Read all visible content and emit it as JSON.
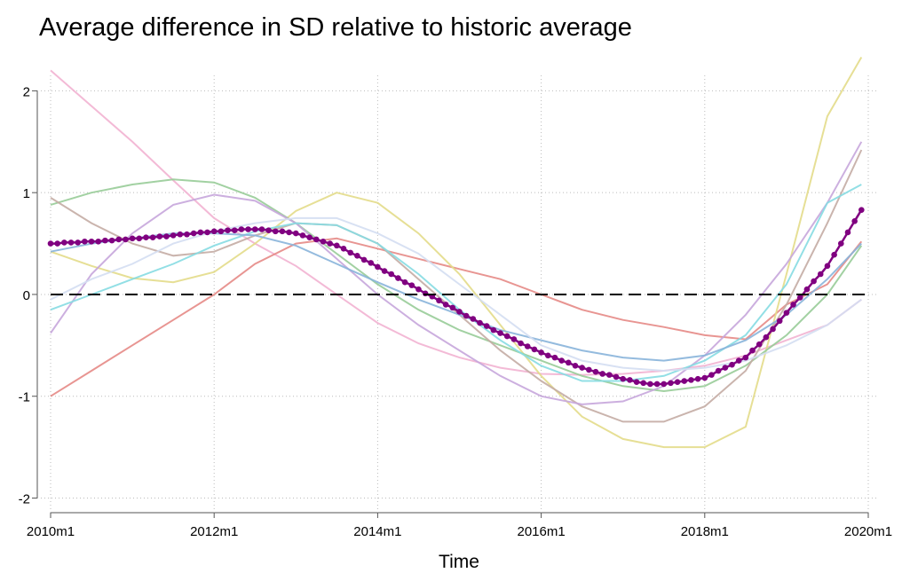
{
  "chart_data": {
    "type": "line",
    "title": "Average difference in SD relative to historic average",
    "x_label": "Time",
    "xlim": [
      0,
      120
    ],
    "ylim": [
      -2.1,
      2.5
    ],
    "xticks": [
      {
        "value": 0,
        "label": "2010m1"
      },
      {
        "value": 24,
        "label": "2012m1"
      },
      {
        "value": 48,
        "label": "2014m1"
      },
      {
        "value": 72,
        "label": "2016m1"
      },
      {
        "value": 96,
        "label": "2018m1"
      },
      {
        "value": 120,
        "label": "2020m1"
      }
    ],
    "yticks": [
      -2,
      -1,
      0,
      1,
      2
    ],
    "grid": true,
    "hline": 0,
    "x": [
      0,
      6,
      12,
      18,
      24,
      30,
      36,
      42,
      48,
      54,
      60,
      66,
      72,
      78,
      84,
      90,
      96,
      102,
      108,
      114,
      119
    ],
    "series": [
      {
        "color": "#f2b3d1",
        "values": [
          2.2,
          1.85,
          1.5,
          1.12,
          0.75,
          0.5,
          0.28,
          0.0,
          -0.28,
          -0.48,
          -0.62,
          -0.72,
          -0.78,
          -0.79,
          -0.78,
          -0.75,
          -0.7,
          -0.6,
          -0.45,
          -0.3,
          -0.05
        ]
      },
      {
        "color": "#e58a86",
        "values": [
          -1,
          -0.75,
          -0.5,
          -0.25,
          0.0,
          0.3,
          0.5,
          0.55,
          0.45,
          0.35,
          0.25,
          0.15,
          0.0,
          -0.15,
          -0.25,
          -0.32,
          -0.4,
          -0.44,
          -0.1,
          0.1,
          0.52
        ]
      },
      {
        "color": "#e3db8a",
        "values": [
          0.42,
          0.28,
          0.16,
          0.12,
          0.22,
          0.5,
          0.82,
          1.0,
          0.9,
          0.6,
          0.2,
          -0.3,
          -0.8,
          -1.2,
          -1.42,
          -1.5,
          -1.5,
          -1.3,
          0.2,
          1.75,
          2.33
        ]
      },
      {
        "color": "#98cc98",
        "values": [
          0.88,
          1.0,
          1.08,
          1.13,
          1.1,
          0.95,
          0.7,
          0.4,
          0.1,
          -0.15,
          -0.35,
          -0.5,
          -0.65,
          -0.8,
          -0.9,
          -0.95,
          -0.9,
          -0.7,
          -0.4,
          0.0,
          0.48
        ]
      },
      {
        "color": "#c4aca4",
        "values": [
          0.95,
          0.7,
          0.5,
          0.38,
          0.42,
          0.58,
          0.7,
          0.68,
          0.5,
          0.15,
          -0.2,
          -0.55,
          -0.85,
          -1.1,
          -1.25,
          -1.25,
          -1.1,
          -0.75,
          -0.1,
          0.7,
          1.42
        ]
      },
      {
        "color": "#c6a6dc",
        "values": [
          -0.38,
          0.2,
          0.6,
          0.88,
          0.98,
          0.92,
          0.7,
          0.35,
          0.0,
          -0.3,
          -0.55,
          -0.8,
          -1.0,
          -1.08,
          -1.05,
          -0.9,
          -0.6,
          -0.2,
          0.3,
          0.9,
          1.5
        ]
      },
      {
        "color": "#86dbe2",
        "values": [
          -0.15,
          0.0,
          0.15,
          0.3,
          0.48,
          0.62,
          0.7,
          0.68,
          0.5,
          0.2,
          -0.15,
          -0.45,
          -0.7,
          -0.85,
          -0.85,
          -0.8,
          -0.65,
          -0.4,
          0.1,
          0.9,
          1.08
        ]
      },
      {
        "color": "#88b4da",
        "values": [
          0.42,
          0.5,
          0.55,
          0.6,
          0.6,
          0.58,
          0.48,
          0.3,
          0.12,
          -0.05,
          -0.2,
          -0.35,
          -0.45,
          -0.55,
          -0.62,
          -0.65,
          -0.6,
          -0.45,
          -0.2,
          0.15,
          0.5
        ]
      },
      {
        "color": "#d4def2",
        "values": [
          -0.05,
          0.15,
          0.3,
          0.5,
          0.62,
          0.7,
          0.75,
          0.75,
          0.6,
          0.4,
          0.1,
          -0.2,
          -0.5,
          -0.65,
          -0.72,
          -0.75,
          -0.72,
          -0.65,
          -0.5,
          -0.3,
          -0.05
        ]
      },
      {
        "color": "#800080",
        "marker": true,
        "x": [
          0,
          1,
          2,
          3,
          4,
          5,
          6,
          7,
          8,
          9,
          10,
          11,
          12,
          13,
          14,
          15,
          16,
          17,
          18,
          19,
          20,
          21,
          22,
          23,
          24,
          25,
          26,
          27,
          28,
          29,
          30,
          31,
          32,
          33,
          34,
          35,
          36,
          37,
          38,
          39,
          40,
          41,
          42,
          43,
          44,
          45,
          46,
          47,
          48,
          49,
          50,
          51,
          52,
          53,
          54,
          55,
          56,
          57,
          58,
          59,
          60,
          61,
          62,
          63,
          64,
          65,
          66,
          67,
          68,
          69,
          70,
          71,
          72,
          73,
          74,
          75,
          76,
          77,
          78,
          79,
          80,
          81,
          82,
          83,
          84,
          85,
          86,
          87,
          88,
          89,
          90,
          91,
          92,
          93,
          94,
          95,
          96,
          97,
          98,
          99,
          100,
          101,
          102,
          103,
          104,
          105,
          106,
          107,
          108,
          109,
          110,
          111,
          112,
          113,
          114,
          115,
          116,
          117,
          118,
          119
        ],
        "values": [
          0.5,
          0.5,
          0.51,
          0.51,
          0.51,
          0.52,
          0.52,
          0.52,
          0.53,
          0.53,
          0.54,
          0.54,
          0.55,
          0.55,
          0.56,
          0.56,
          0.57,
          0.57,
          0.58,
          0.59,
          0.59,
          0.6,
          0.61,
          0.61,
          0.62,
          0.62,
          0.63,
          0.63,
          0.64,
          0.64,
          0.64,
          0.64,
          0.63,
          0.62,
          0.62,
          0.61,
          0.6,
          0.58,
          0.56,
          0.54,
          0.52,
          0.5,
          0.48,
          0.45,
          0.41,
          0.38,
          0.34,
          0.31,
          0.27,
          0.23,
          0.2,
          0.16,
          0.12,
          0.09,
          0.05,
          0.01,
          -0.02,
          -0.06,
          -0.1,
          -0.13,
          -0.17,
          -0.21,
          -0.24,
          -0.28,
          -0.31,
          -0.35,
          -0.38,
          -0.41,
          -0.44,
          -0.48,
          -0.51,
          -0.54,
          -0.57,
          -0.6,
          -0.62,
          -0.65,
          -0.67,
          -0.7,
          -0.72,
          -0.74,
          -0.76,
          -0.78,
          -0.79,
          -0.81,
          -0.83,
          -0.84,
          -0.86,
          -0.87,
          -0.88,
          -0.88,
          -0.88,
          -0.87,
          -0.86,
          -0.85,
          -0.84,
          -0.83,
          -0.82,
          -0.79,
          -0.75,
          -0.72,
          -0.69,
          -0.65,
          -0.62,
          -0.55,
          -0.49,
          -0.42,
          -0.34,
          -0.26,
          -0.18,
          -0.1,
          -0.03,
          0.05,
          0.13,
          0.2,
          0.28,
          0.39,
          0.5,
          0.61,
          0.72,
          0.83
        ]
      }
    ]
  }
}
